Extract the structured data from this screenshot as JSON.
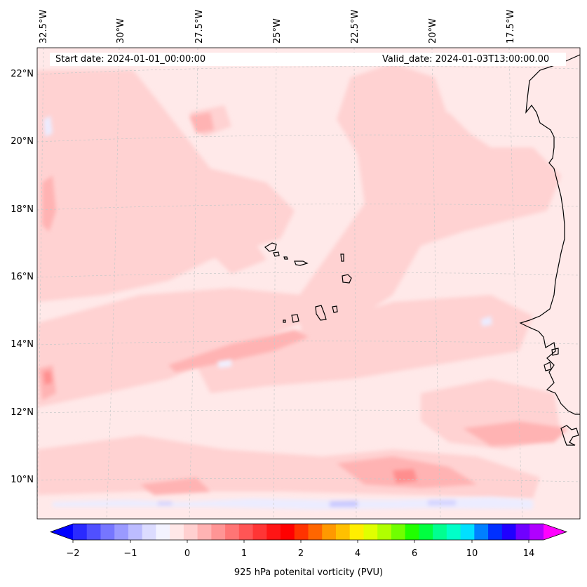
{
  "map": {
    "lon_labels": [
      "32.5°W",
      "30°W",
      "27.5°W",
      "25°W",
      "22.5°W",
      "20°W",
      "17.5°W"
    ],
    "lat_labels": [
      "22°N",
      "20°N",
      "18°N",
      "16°N",
      "14°N",
      "12°N",
      "10°N"
    ],
    "start_date": "Start date: 2024-01-01_00:00:00",
    "valid_date": "Valid_date: 2024-01-03T13:00:00.00",
    "field": "925 hPa potenital vorticity (PVU)",
    "background_color": "#ffe9e9",
    "coastline_color": "#000000"
  },
  "colorbar": {
    "tick_labels": [
      "−2",
      "−1",
      "0",
      "1",
      "2",
      "4",
      "6",
      "10",
      "14"
    ],
    "colors": [
      "#0000ff",
      "#2a2aff",
      "#5050ff",
      "#7676ff",
      "#9a9aff",
      "#bcbcff",
      "#dcdcff",
      "#f3f3ff",
      "#ffe8e8",
      "#ffd0d0",
      "#ffb3b3",
      "#ff9595",
      "#ff7575",
      "#ff5555",
      "#ff3535",
      "#ff1515",
      "#ff0000",
      "#ff3300",
      "#ff6600",
      "#ff9900",
      "#ffc000",
      "#ffee00",
      "#e0ff00",
      "#b0ff00",
      "#70ff00",
      "#20ff00",
      "#00ff40",
      "#00ff90",
      "#00ffc8",
      "#00e0ff",
      "#0080ff",
      "#0030ff",
      "#2000ff",
      "#7000ff",
      "#b000ff",
      "#ff00ff"
    ]
  }
}
